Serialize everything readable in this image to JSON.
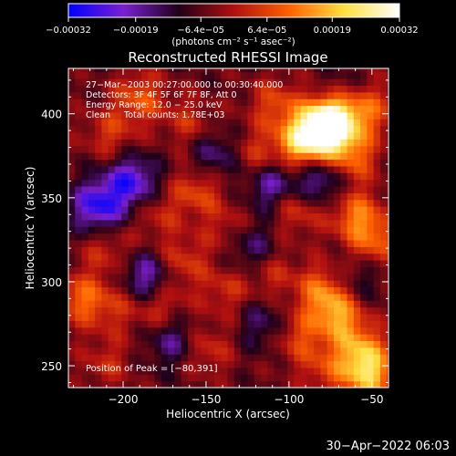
{
  "chart_data": {
    "type": "heatmap",
    "title": "Reconstructed RHESSI Image",
    "xlabel": "Heliocentric X (arcsec)",
    "ylabel": "Heliocentric Y (arcsec)",
    "x_range": [
      -233,
      -40
    ],
    "y_range": [
      237,
      427
    ],
    "x_ticks": [
      {
        "value": -200,
        "label": "−200"
      },
      {
        "value": -150,
        "label": "−150"
      },
      {
        "value": -100,
        "label": "−100"
      },
      {
        "value": -50,
        "label": "−50"
      }
    ],
    "y_ticks": [
      {
        "value": 250,
        "label": "250"
      },
      {
        "value": 300,
        "label": "300"
      },
      {
        "value": 350,
        "label": "350"
      },
      {
        "value": 400,
        "label": "400"
      }
    ],
    "colorbar": {
      "range": [
        -0.00032,
        0.00032
      ],
      "tick_labels": [
        "−0.00032",
        "−0.00019",
        "−6.4e−05",
        "6.4e−05",
        "0.00019",
        "0.00032"
      ],
      "tick_values": [
        -0.00032,
        -0.00019,
        -6.4e-05,
        6.4e-05,
        0.00019,
        0.00032
      ],
      "unit_label": "(photons cm⁻² s⁻¹ asec⁻²)",
      "colors": [
        "#0000ff",
        "#7a1fd0",
        "#200018",
        "#b01010",
        "#ff6000",
        "#ffe040",
        "#ffffff"
      ]
    },
    "annotations": [
      "27−Mar−2003 00:27:00.000 to 00:30:40.000",
      "Detectors: 3F 4F 5F 6F 7F 8F, Att 0",
      "Energy Range: 12.0 − 25.0 keV",
      "Clean     Total counts: 1.78E+03"
    ],
    "peak_text": "Position of Peak = [−80,391]",
    "peak": {
      "x": -80,
      "y": 391
    },
    "grid": false,
    "map_blobs": [
      {
        "x": -80,
        "y": 391,
        "v": 0.00032
      },
      {
        "x": -72,
        "y": 399,
        "v": 0.00028
      },
      {
        "x": -93,
        "y": 382,
        "v": 0.00022
      },
      {
        "x": -62,
        "y": 375,
        "v": 0.00016
      },
      {
        "x": -108,
        "y": 406,
        "v": 0.00012
      },
      {
        "x": -52,
        "y": 403,
        "v": 0.00014
      },
      {
        "x": -120,
        "y": 375,
        "v": 0.0001
      },
      {
        "x": -190,
        "y": 410,
        "v": 0.00014
      },
      {
        "x": -160,
        "y": 395,
        "v": 9e-05
      },
      {
        "x": -208,
        "y": 388,
        "v": 0.0001
      },
      {
        "x": -155,
        "y": 355,
        "v": 0.00013
      },
      {
        "x": -180,
        "y": 340,
        "v": 8e-05
      },
      {
        "x": -135,
        "y": 330,
        "v": 0.00011
      },
      {
        "x": -95,
        "y": 345,
        "v": 0.00013
      },
      {
        "x": -60,
        "y": 340,
        "v": 0.00016
      },
      {
        "x": -48,
        "y": 325,
        "v": 0.00014
      },
      {
        "x": -165,
        "y": 312,
        "v": 0.00011
      },
      {
        "x": -210,
        "y": 320,
        "v": 9e-05
      },
      {
        "x": -225,
        "y": 290,
        "v": 0.00015
      },
      {
        "x": -205,
        "y": 285,
        "v": 8e-05
      },
      {
        "x": -178,
        "y": 287,
        "v": 0.00012
      },
      {
        "x": -138,
        "y": 295,
        "v": 9e-05
      },
      {
        "x": -110,
        "y": 305,
        "v": 8e-05
      },
      {
        "x": -80,
        "y": 295,
        "v": 0.00016
      },
      {
        "x": -70,
        "y": 280,
        "v": 0.00019
      },
      {
        "x": -95,
        "y": 268,
        "v": 0.00012
      },
      {
        "x": -57,
        "y": 260,
        "v": 0.00016
      },
      {
        "x": -52,
        "y": 245,
        "v": 0.00023
      },
      {
        "x": -78,
        "y": 248,
        "v": 0.0001
      },
      {
        "x": -150,
        "y": 260,
        "v": 0.0001
      },
      {
        "x": -210,
        "y": 252,
        "v": 8e-05
      },
      {
        "x": -195,
        "y": 360,
        "v": -0.0002
      },
      {
        "x": -215,
        "y": 345,
        "v": -0.00022
      },
      {
        "x": -145,
        "y": 375,
        "v": -0.00012
      },
      {
        "x": -110,
        "y": 358,
        "v": -0.00016
      },
      {
        "x": -82,
        "y": 360,
        "v": -0.00017
      },
      {
        "x": -70,
        "y": 410,
        "v": -0.0001
      },
      {
        "x": -125,
        "y": 322,
        "v": -0.00014
      },
      {
        "x": -185,
        "y": 302,
        "v": -0.00018
      },
      {
        "x": -170,
        "y": 265,
        "v": -0.00012
      },
      {
        "x": -115,
        "y": 275,
        "v": -0.0001
      },
      {
        "x": -60,
        "y": 300,
        "v": -8e-05
      }
    ]
  },
  "footer": {
    "timestamp": "30−Apr−2022 06:03"
  }
}
